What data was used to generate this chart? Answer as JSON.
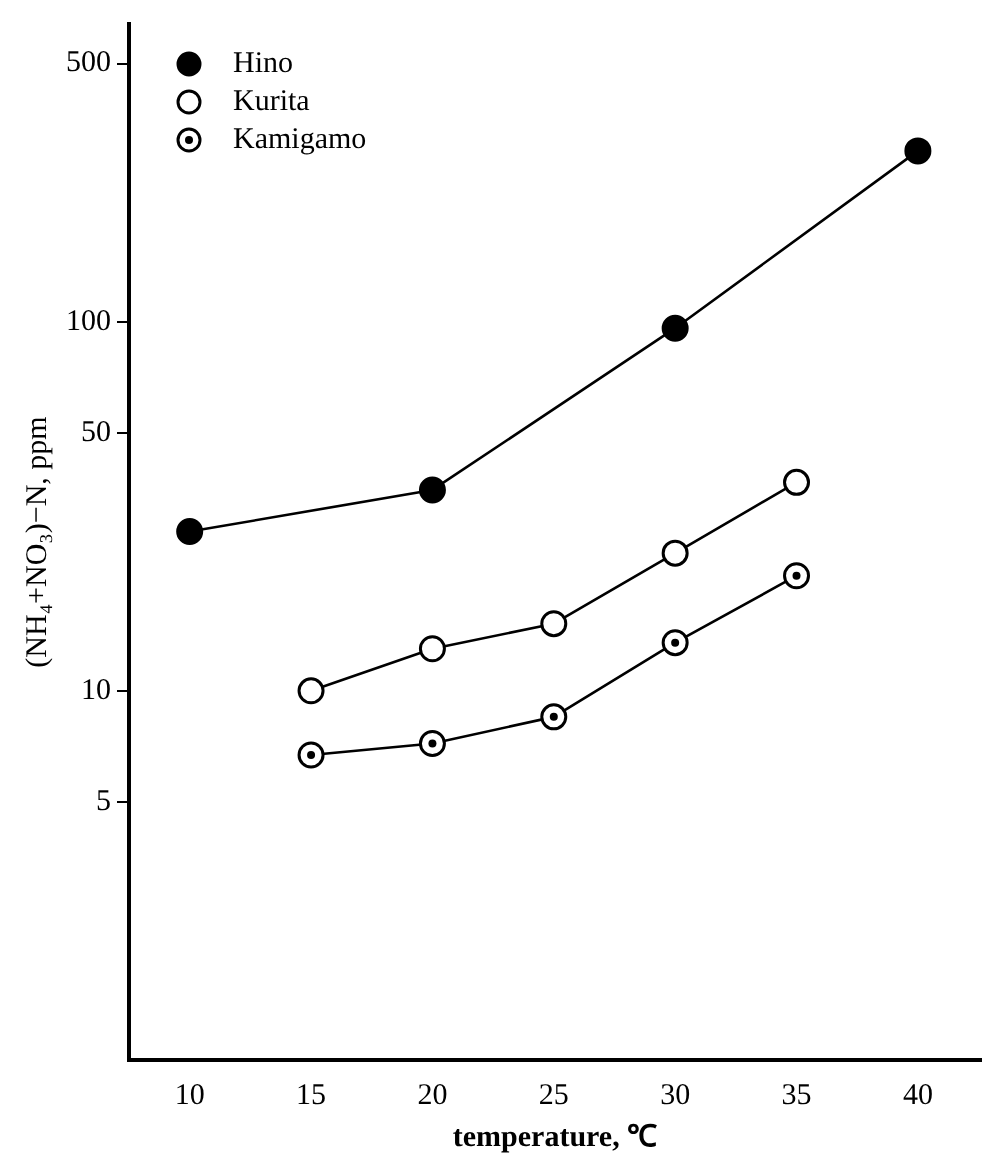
{
  "chart_data": {
    "type": "line",
    "xlabel": "temperature, ℃",
    "ylabel": "(NH₄+NO₃)−N, ppm",
    "log": "y",
    "grid": false,
    "legend": "top left",
    "line_style": "solid",
    "xlim": [
      7.5,
      42.6
    ],
    "xticks": [
      10,
      15,
      20,
      25,
      30,
      35,
      40
    ],
    "ylim": [
      1,
      640
    ],
    "yticks": [
      5,
      10,
      50,
      100,
      500
    ],
    "series": [
      {
        "name": "Hino",
        "color": "#000000",
        "marker": "circle",
        "x": [
          10,
          20,
          30,
          40
        ],
        "values": [
          27,
          35,
          96,
          290
        ]
      },
      {
        "name": "Kurita",
        "color": "#000000",
        "marker": "circle-open",
        "x": [
          15,
          20,
          25,
          30,
          35
        ],
        "values": [
          10,
          13,
          15.2,
          23.6,
          36.7
        ]
      },
      {
        "name": "Kamigamo",
        "color": "#000000",
        "marker": "circle-dot",
        "x": [
          15,
          20,
          25,
          30,
          35
        ],
        "values": [
          6.7,
          7.2,
          8.5,
          13.5,
          20.5
        ]
      }
    ]
  }
}
